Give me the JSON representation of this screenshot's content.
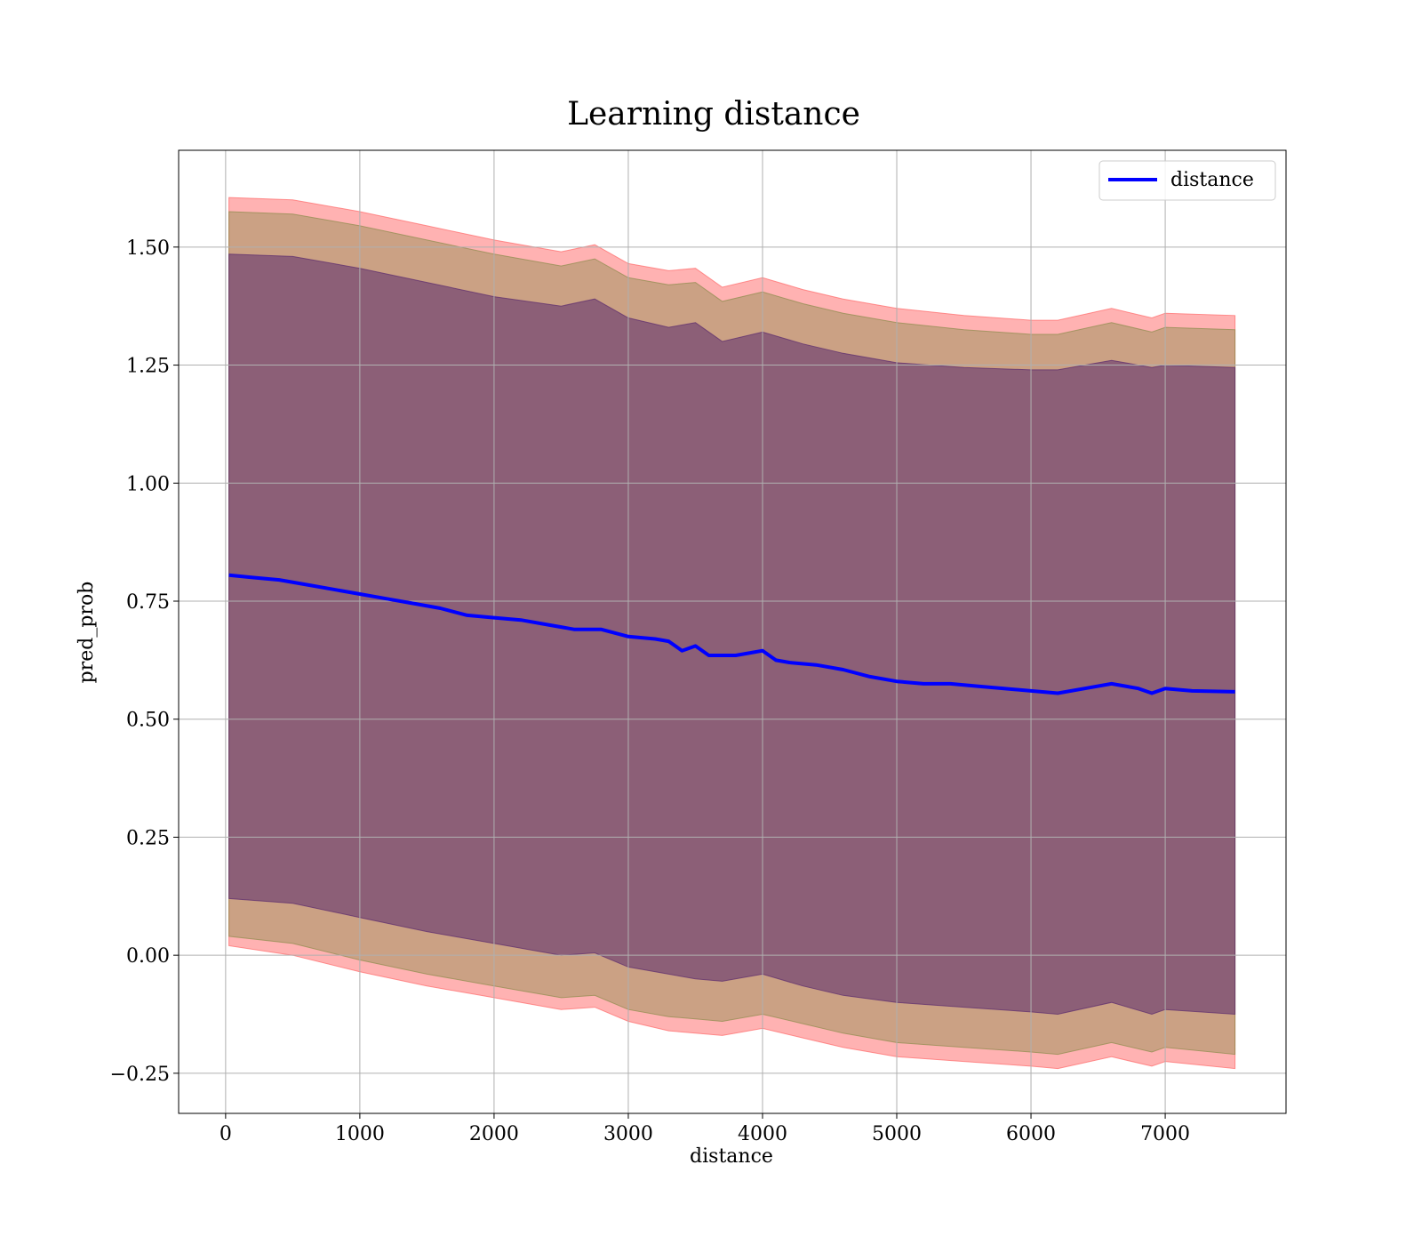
{
  "chart_data": {
    "type": "line",
    "title": "Learning distance",
    "xlabel": "distance",
    "ylabel": "pred_prob",
    "xlim": [
      -350,
      7900
    ],
    "ylim": [
      -0.335,
      1.705
    ],
    "xticks": [
      0,
      1000,
      2000,
      3000,
      4000,
      5000,
      6000,
      7000
    ],
    "yticks": [
      -0.25,
      0.0,
      0.25,
      0.5,
      0.75,
      1.0,
      1.25,
      1.5
    ],
    "xtick_labels": [
      "0",
      "1000",
      "2000",
      "3000",
      "4000",
      "5000",
      "6000",
      "7000"
    ],
    "ytick_labels": [
      "−0.25",
      "0.00",
      "0.25",
      "0.50",
      "0.75",
      "1.00",
      "1.25",
      "1.50"
    ],
    "grid": true,
    "legend_position": "upper right",
    "series": [
      {
        "name": "distance",
        "color": "#0000ff",
        "x": [
          25,
          200,
          400,
          600,
          800,
          1000,
          1200,
          1400,
          1600,
          1800,
          2000,
          2200,
          2400,
          2600,
          2800,
          3000,
          3200,
          3300,
          3400,
          3500,
          3600,
          3700,
          3800,
          3900,
          4000,
          4100,
          4200,
          4400,
          4600,
          4800,
          5000,
          5200,
          5400,
          5600,
          5800,
          6000,
          6200,
          6400,
          6600,
          6800,
          6900,
          7000,
          7200,
          7520
        ],
        "values": [
          0.805,
          0.8,
          0.795,
          0.785,
          0.775,
          0.765,
          0.755,
          0.745,
          0.735,
          0.72,
          0.715,
          0.71,
          0.7,
          0.69,
          0.69,
          0.675,
          0.67,
          0.665,
          0.645,
          0.655,
          0.635,
          0.635,
          0.635,
          0.64,
          0.645,
          0.625,
          0.62,
          0.615,
          0.605,
          0.59,
          0.58,
          0.575,
          0.575,
          0.57,
          0.565,
          0.56,
          0.555,
          0.565,
          0.575,
          0.565,
          0.555,
          0.565,
          0.56,
          0.558
        ]
      }
    ],
    "bands": [
      {
        "color": "#ff6666",
        "opacity": 0.5,
        "x": [
          25,
          500,
          1000,
          1500,
          2000,
          2500,
          2750,
          3000,
          3300,
          3500,
          3700,
          4000,
          4300,
          4600,
          5000,
          5500,
          6000,
          6200,
          6600,
          6900,
          7000,
          7520
        ],
        "upper": [
          1.605,
          1.6,
          1.575,
          1.545,
          1.515,
          1.49,
          1.505,
          1.465,
          1.45,
          1.455,
          1.415,
          1.435,
          1.41,
          1.39,
          1.37,
          1.355,
          1.345,
          1.345,
          1.37,
          1.35,
          1.36,
          1.355
        ],
        "lower": [
          0.02,
          0.0,
          -0.035,
          -0.065,
          -0.09,
          -0.115,
          -0.11,
          -0.14,
          -0.16,
          -0.165,
          -0.17,
          -0.155,
          -0.175,
          -0.195,
          -0.215,
          -0.225,
          -0.235,
          -0.24,
          -0.215,
          -0.235,
          -0.225,
          -0.24
        ]
      },
      {
        "color": "#8b8b4b",
        "opacity": 0.45,
        "x": [
          25,
          500,
          1000,
          1500,
          2000,
          2500,
          2750,
          3000,
          3300,
          3500,
          3700,
          4000,
          4300,
          4600,
          5000,
          5500,
          6000,
          6200,
          6600,
          6900,
          7000,
          7520
        ],
        "upper": [
          1.575,
          1.57,
          1.545,
          1.515,
          1.485,
          1.46,
          1.475,
          1.435,
          1.42,
          1.425,
          1.385,
          1.405,
          1.38,
          1.36,
          1.34,
          1.325,
          1.315,
          1.315,
          1.34,
          1.32,
          1.33,
          1.325
        ],
        "lower": [
          0.04,
          0.025,
          -0.01,
          -0.04,
          -0.065,
          -0.09,
          -0.085,
          -0.115,
          -0.13,
          -0.135,
          -0.14,
          -0.125,
          -0.145,
          -0.165,
          -0.185,
          -0.195,
          -0.205,
          -0.21,
          -0.185,
          -0.205,
          -0.195,
          -0.21
        ]
      },
      {
        "color": "#5a2a6e",
        "opacity": 0.55,
        "x": [
          25,
          500,
          1000,
          1500,
          2000,
          2500,
          2750,
          3000,
          3300,
          3500,
          3700,
          4000,
          4300,
          4600,
          5000,
          5500,
          6000,
          6200,
          6600,
          6900,
          7000,
          7520
        ],
        "upper": [
          1.485,
          1.48,
          1.455,
          1.425,
          1.395,
          1.375,
          1.39,
          1.35,
          1.33,
          1.34,
          1.3,
          1.32,
          1.295,
          1.275,
          1.255,
          1.245,
          1.24,
          1.24,
          1.26,
          1.245,
          1.25,
          1.245
        ],
        "lower": [
          0.12,
          0.11,
          0.08,
          0.05,
          0.025,
          0.0,
          0.005,
          -0.025,
          -0.04,
          -0.05,
          -0.055,
          -0.04,
          -0.065,
          -0.085,
          -0.1,
          -0.11,
          -0.12,
          -0.125,
          -0.1,
          -0.125,
          -0.115,
          -0.125
        ]
      }
    ]
  }
}
